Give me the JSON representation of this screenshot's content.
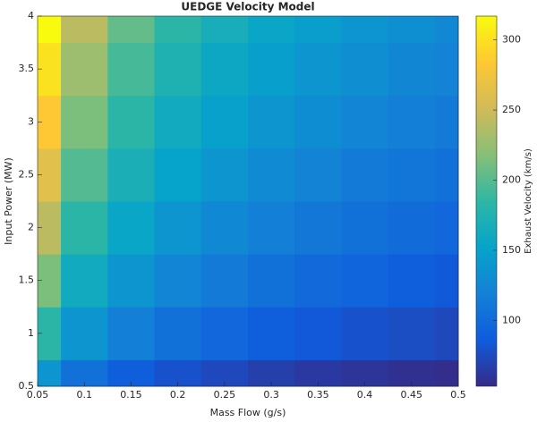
{
  "chart_data": {
    "type": "contourf",
    "title": "UEDGE Velocity Model",
    "x_label": "Mass Flow (g/s)",
    "y_label": "Input Power (MW)",
    "colorbar_label": "Exhaust Velocity (km/s)",
    "x": [
      0.05,
      0.1,
      0.15,
      0.2,
      0.25,
      0.3,
      0.35,
      0.4,
      0.45,
      0.5
    ],
    "y": [
      0.5,
      1,
      1.5,
      2,
      2.5,
      3,
      3.5,
      4
    ],
    "z": [
      [
        138,
        105,
        89,
        79,
        73,
        67,
        63,
        60,
        57,
        55
      ],
      [
        182,
        138,
        117,
        105,
        96,
        89,
        84,
        79,
        76,
        73
      ],
      [
        214,
        162,
        138,
        123,
        113,
        105,
        98,
        93,
        89,
        85
      ],
      [
        241,
        182,
        155,
        138,
        126,
        117,
        110,
        105,
        100,
        96
      ],
      [
        263,
        199,
        169,
        151,
        138,
        128,
        121,
        114,
        109,
        105
      ],
      [
        283,
        214,
        182,
        162,
        149,
        138,
        130,
        123,
        117,
        113
      ],
      [
        301,
        228,
        194,
        173,
        158,
        147,
        138,
        131,
        125,
        120
      ],
      [
        317,
        241,
        205,
        182,
        167,
        155,
        146,
        138,
        132,
        126
      ]
    ],
    "xlim": [
      0.05,
      0.5
    ],
    "ylim": [
      0.5,
      4
    ],
    "xticks": [
      0.05,
      0.1,
      0.15,
      0.2,
      0.25,
      0.3,
      0.35,
      0.4,
      0.45,
      0.5
    ],
    "yticks": [
      0.5,
      1,
      1.5,
      2,
      2.5,
      3,
      3.5,
      4
    ],
    "clim": [
      53,
      317
    ],
    "cticks": [
      100,
      150,
      200,
      250,
      300
    ],
    "colormap": [
      "#352a87",
      "#0f5cdd",
      "#1481d6",
      "#06a4ca",
      "#2eb7a4",
      "#87bf77",
      "#d1bb59",
      "#fec832",
      "#f9fb0e"
    ]
  }
}
